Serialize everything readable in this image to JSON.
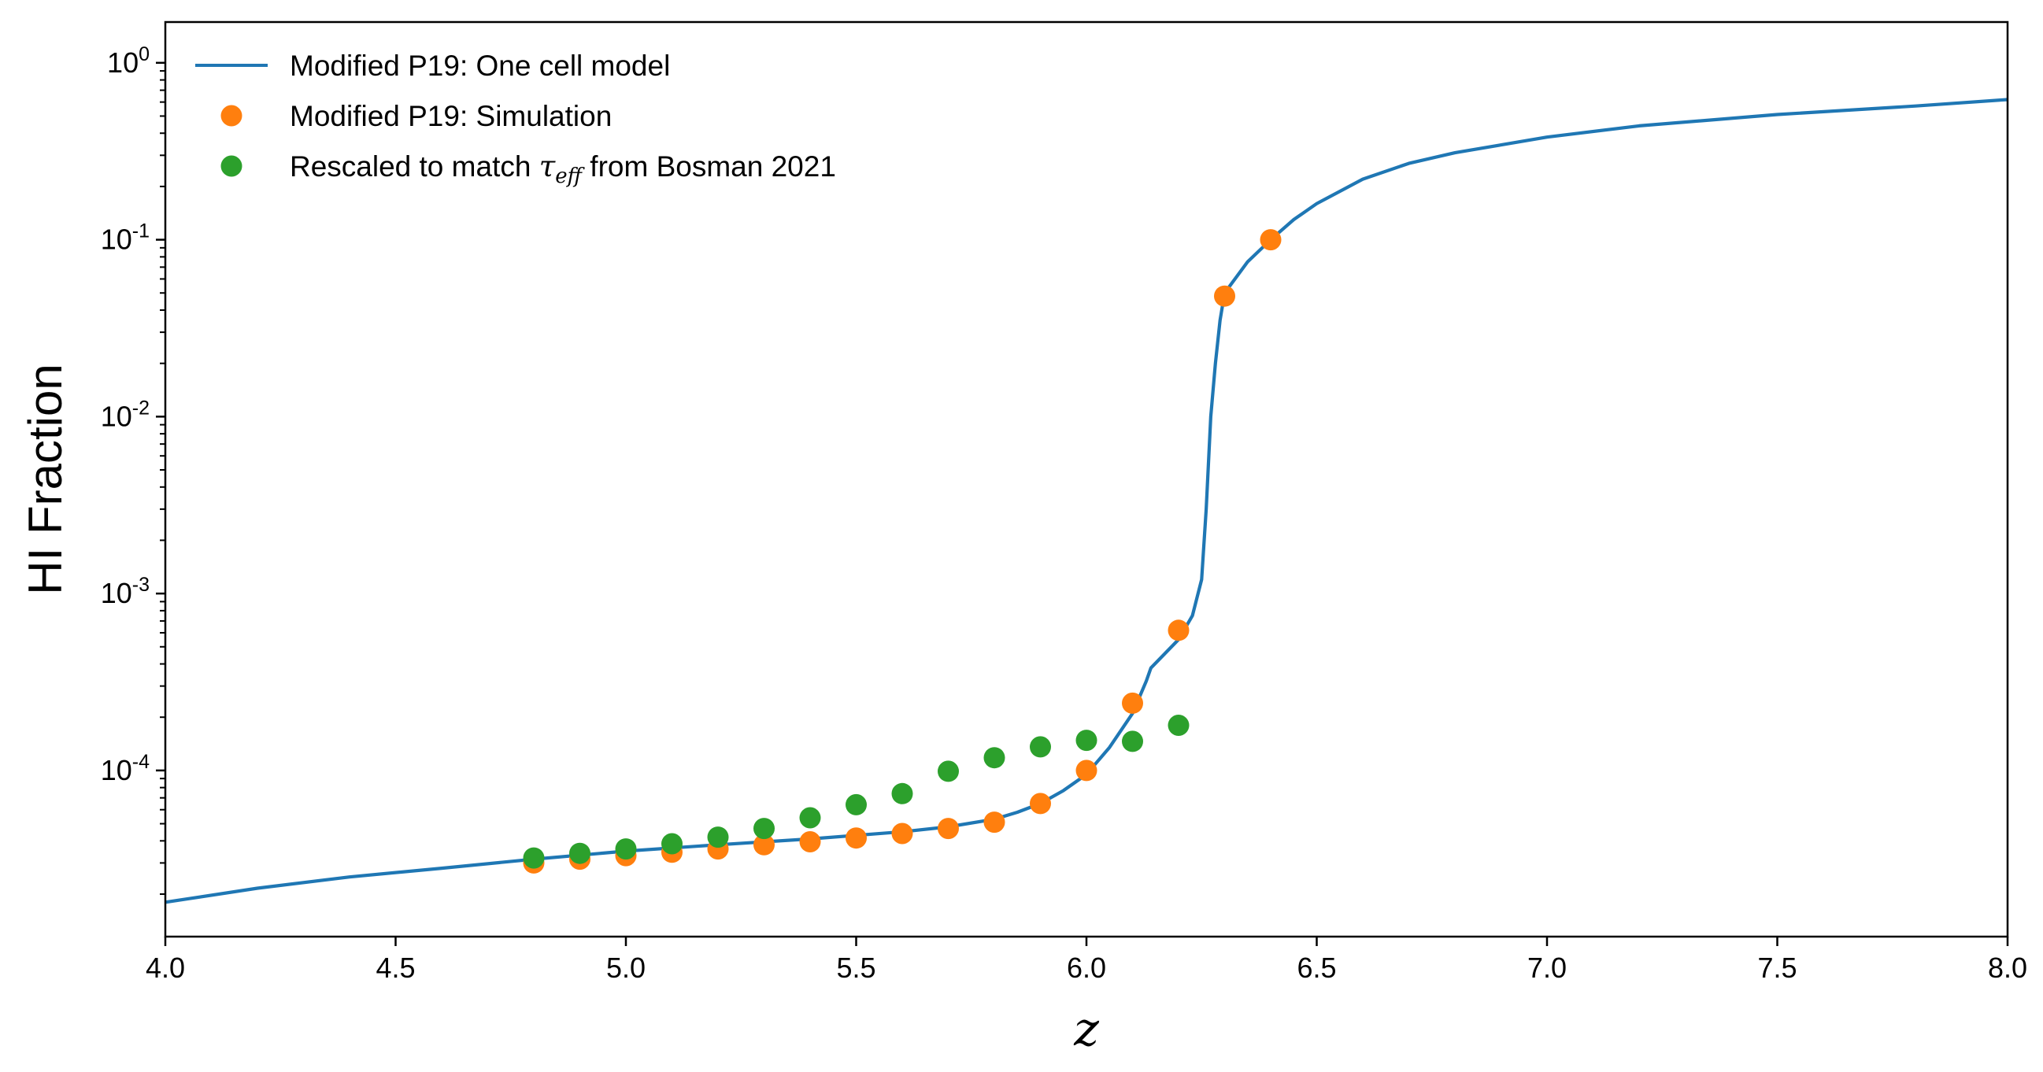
{
  "chart_data": {
    "type": "line+scatter",
    "title": "",
    "xlabel": "z",
    "ylabel": "HI Fraction",
    "xlim": [
      4.0,
      8.0
    ],
    "ylim": [
      1.15e-05,
      1.7
    ],
    "yscale": "log",
    "grid": false,
    "legend_position": "upper-left",
    "x_ticks": [
      "4.0",
      "4.5",
      "5.0",
      "5.5",
      "6.0",
      "6.5",
      "7.0",
      "7.5",
      "8.0"
    ],
    "x_tick_values": [
      4.0,
      4.5,
      5.0,
      5.5,
      6.0,
      6.5,
      7.0,
      7.5,
      8.0
    ],
    "y_ticks": [
      {
        "value": 0.0001,
        "base": "10",
        "exp": "-4"
      },
      {
        "value": 0.001,
        "base": "10",
        "exp": "-3"
      },
      {
        "value": 0.01,
        "base": "10",
        "exp": "-2"
      },
      {
        "value": 0.1,
        "base": "10",
        "exp": "-1"
      },
      {
        "value": 1,
        "base": "10",
        "exp": "0"
      }
    ],
    "series": [
      {
        "name": "Modified P19: One cell model",
        "kind": "line",
        "color": "#1f77b4",
        "x": [
          4.0,
          4.2,
          4.4,
          4.6,
          4.8,
          5.0,
          5.2,
          5.4,
          5.6,
          5.7,
          5.8,
          5.85,
          5.9,
          5.95,
          6.0,
          6.05,
          6.1,
          6.13,
          6.14,
          6.2,
          6.23,
          6.25,
          6.26,
          6.27,
          6.28,
          6.29,
          6.3,
          6.35,
          6.4,
          6.45,
          6.5,
          6.6,
          6.7,
          6.8,
          7.0,
          7.2,
          7.5,
          7.8,
          8.0
        ],
        "y": [
          1.8e-05,
          2.16e-05,
          2.5e-05,
          2.8e-05,
          3.15e-05,
          3.5e-05,
          3.8e-05,
          4.1e-05,
          4.5e-05,
          4.8e-05,
          5.3e-05,
          5.8e-05,
          6.5e-05,
          7.7e-05,
          9.5e-05,
          0.000135,
          0.00021,
          0.00032,
          0.00038,
          0.00055,
          0.00075,
          0.0012,
          0.003,
          0.01,
          0.02,
          0.035,
          0.05,
          0.075,
          0.1,
          0.13,
          0.16,
          0.22,
          0.27,
          0.31,
          0.38,
          0.44,
          0.51,
          0.57,
          0.62
        ]
      },
      {
        "name": "Modified P19: Simulation",
        "kind": "scatter",
        "color": "#ff7f0e",
        "x": [
          4.8,
          4.9,
          5.0,
          5.1,
          5.2,
          5.3,
          5.4,
          5.5,
          5.6,
          5.7,
          5.8,
          5.9,
          6.0,
          6.1,
          6.2,
          6.3,
          6.4
        ],
        "y": [
          3e-05,
          3.15e-05,
          3.3e-05,
          3.45e-05,
          3.6e-05,
          3.8e-05,
          3.95e-05,
          4.15e-05,
          4.4e-05,
          4.7e-05,
          5.1e-05,
          6.5e-05,
          0.0001,
          0.00024,
          0.00062,
          0.048,
          0.1
        ]
      },
      {
        "name": "Rescaled to match τ_eff from Bosman 2021",
        "kind": "scatter",
        "color": "#2ca02c",
        "x": [
          4.8,
          4.9,
          5.0,
          5.1,
          5.2,
          5.3,
          5.4,
          5.5,
          5.6,
          5.7,
          5.8,
          5.9,
          6.0,
          6.1,
          6.2
        ],
        "y": [
          3.2e-05,
          3.4e-05,
          3.6e-05,
          3.85e-05,
          4.2e-05,
          4.7e-05,
          5.4e-05,
          6.4e-05,
          7.4e-05,
          9.9e-05,
          0.000118,
          0.000136,
          0.000148,
          0.000146,
          0.00018
        ]
      }
    ],
    "legend": {
      "entries": [
        {
          "text": "Modified P19: One cell model"
        },
        {
          "text": "Modified P19: Simulation"
        },
        {
          "text_before": "Rescaled to match ",
          "math": "τ",
          "math_sub": "eff",
          "text_after": " from Bosman 2021"
        }
      ]
    }
  }
}
